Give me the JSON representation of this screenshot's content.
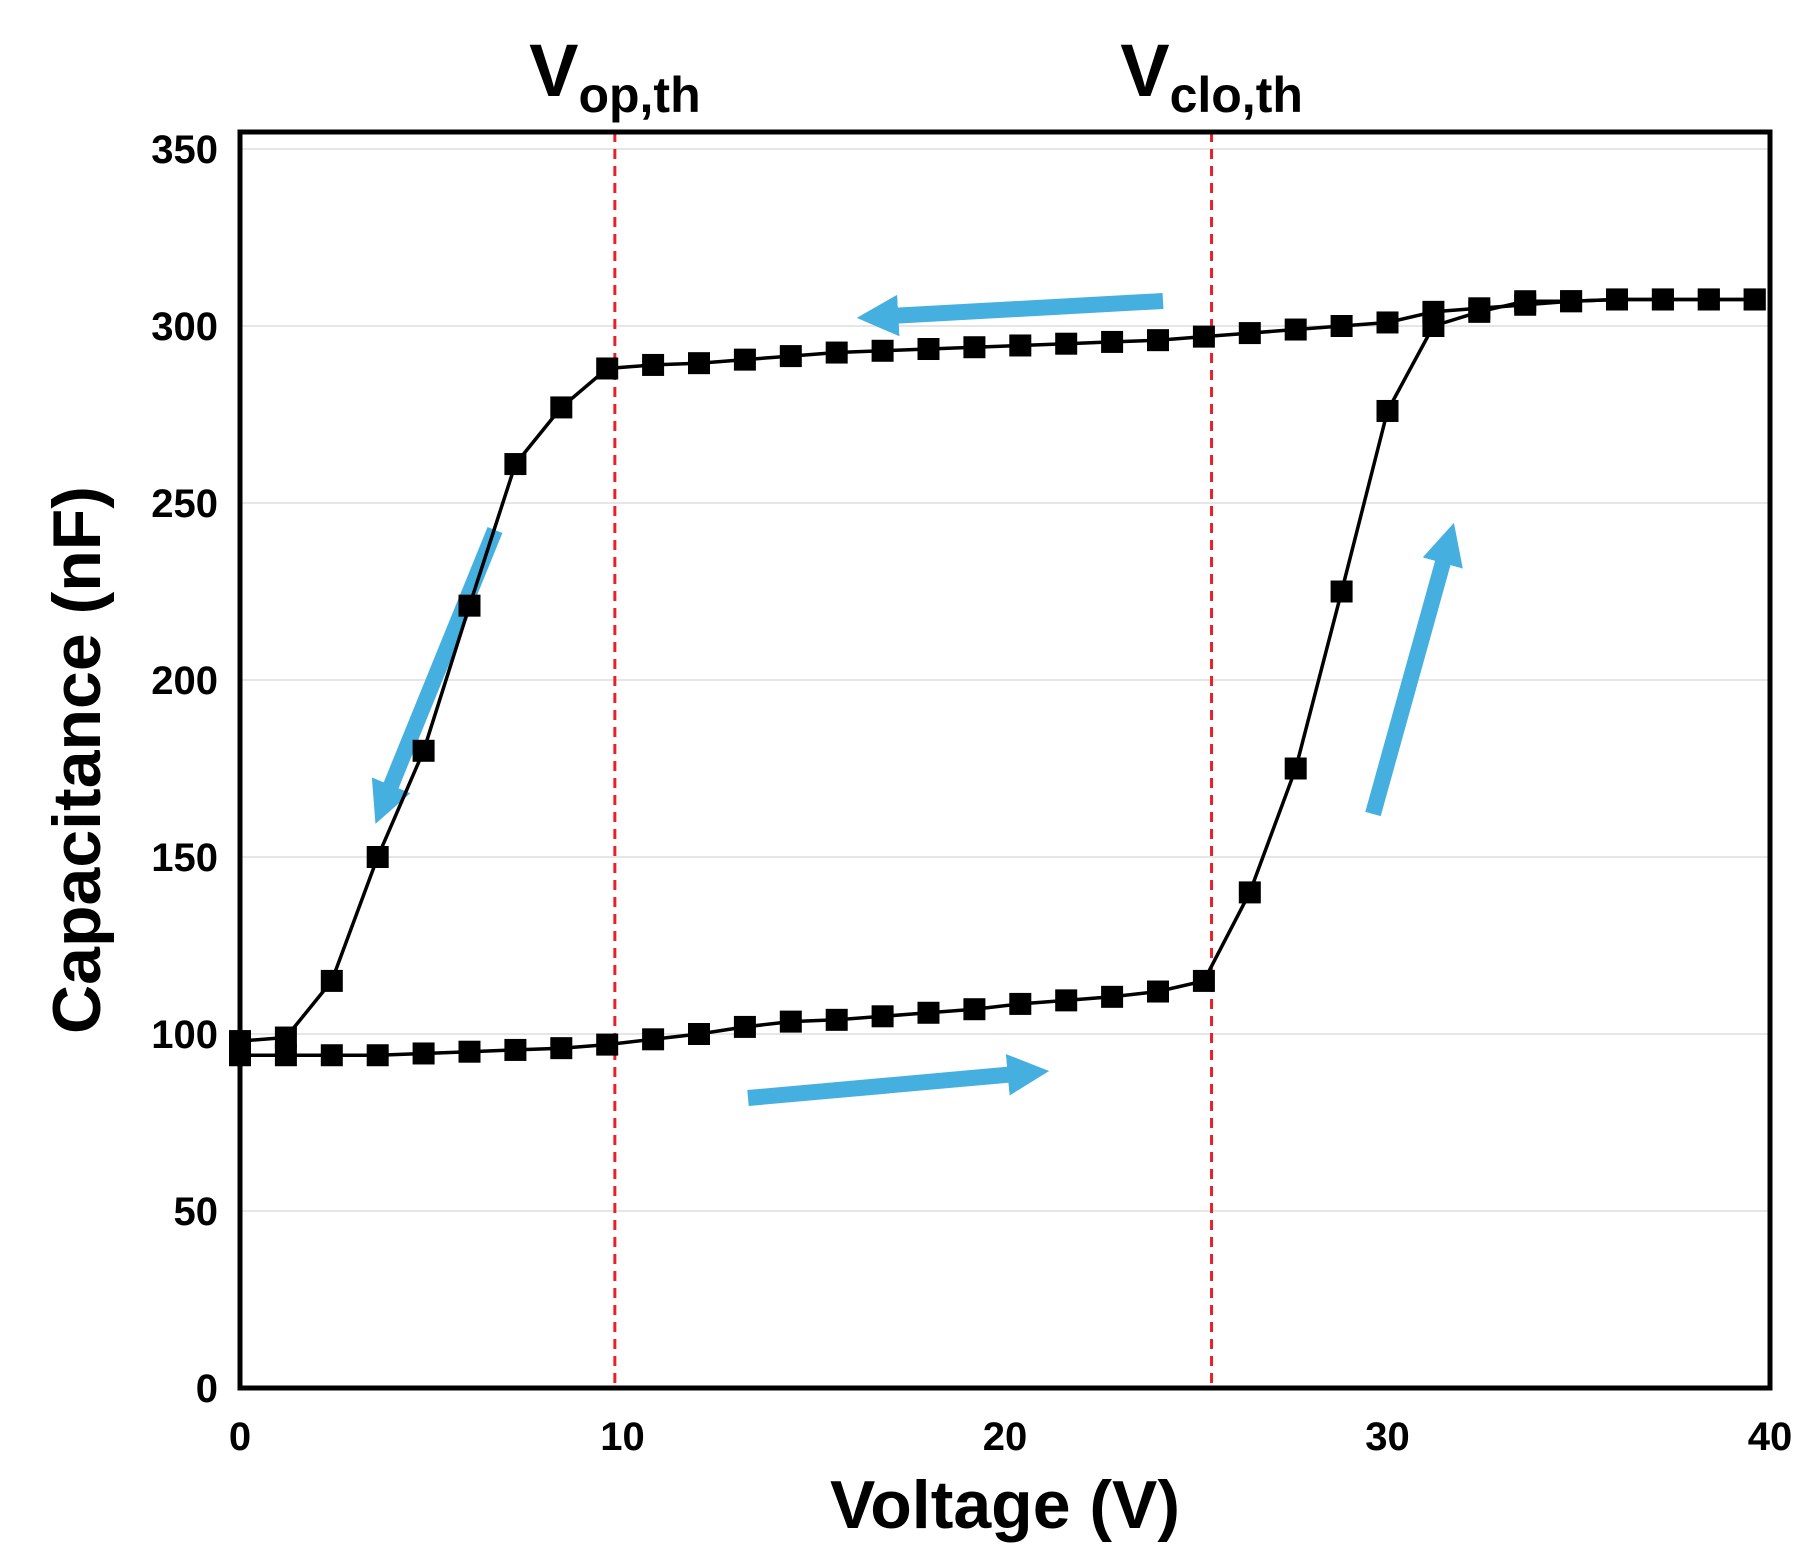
{
  "chart_data": {
    "type": "line",
    "title": "",
    "xlabel": "Voltage (V)",
    "ylabel": "Capacitance (nF)",
    "xlim": [
      0,
      40
    ],
    "ylim": [
      0,
      360
    ],
    "xticks": [
      "0",
      "10",
      "20",
      "30",
      "40"
    ],
    "yticks": [
      "0",
      "50",
      "100",
      "150",
      "200",
      "250",
      "300",
      "350"
    ],
    "grid": "horizontal",
    "legend": "none",
    "colors": {
      "series": "#000000",
      "threshold": "#e8202a",
      "arrow": "#45b0e0",
      "grid": "#e6e6e6"
    },
    "thresholds": [
      {
        "base": "V",
        "sub": "op,th",
        "x": 9.8
      },
      {
        "base": "V",
        "sub": "clo,th",
        "x": 25.4
      }
    ],
    "series": [
      {
        "x": [
          0,
          1.2,
          2.4,
          3.6,
          4.8,
          6,
          7.2,
          8.4,
          9.6,
          10.8,
          12,
          13.2,
          14.4,
          15.6,
          16.8,
          18,
          19.2,
          20.4,
          21.6,
          22.8,
          24,
          25.2,
          26.4,
          27.6,
          28.8,
          30,
          31.2,
          32.4,
          33.6,
          34.8,
          36,
          37.2,
          38.4,
          39.6
        ],
        "y": [
          94,
          94,
          94,
          94,
          94.5,
          95,
          95.5,
          96,
          97,
          98.5,
          100,
          102,
          103.5,
          104,
          105,
          106,
          107,
          108.5,
          109.5,
          110.5,
          112,
          115,
          140,
          175,
          225,
          276,
          300,
          304,
          307,
          307,
          307.5,
          307.5,
          307.5,
          307.5
        ]
      },
      {
        "x": [
          39.6,
          38.4,
          37.2,
          36,
          34.8,
          33.6,
          32.4,
          31.2,
          30,
          28.8,
          27.6,
          26.4,
          25.2,
          24,
          22.8,
          21.6,
          20.4,
          19.2,
          18,
          16.8,
          15.6,
          14.4,
          13.2,
          12,
          10.8,
          9.6,
          8.4,
          7.2,
          6,
          4.8,
          3.6,
          2.4,
          1.2,
          0
        ],
        "y": [
          307.5,
          307.5,
          307.5,
          307.5,
          307,
          306,
          305,
          304,
          301,
          300,
          299,
          298,
          297,
          296,
          295.5,
          295,
          294.5,
          294,
          293.5,
          293,
          292.5,
          291.5,
          290.5,
          289.5,
          289,
          288,
          277,
          261,
          221,
          180,
          150,
          115,
          99,
          98
        ]
      }
    ]
  }
}
